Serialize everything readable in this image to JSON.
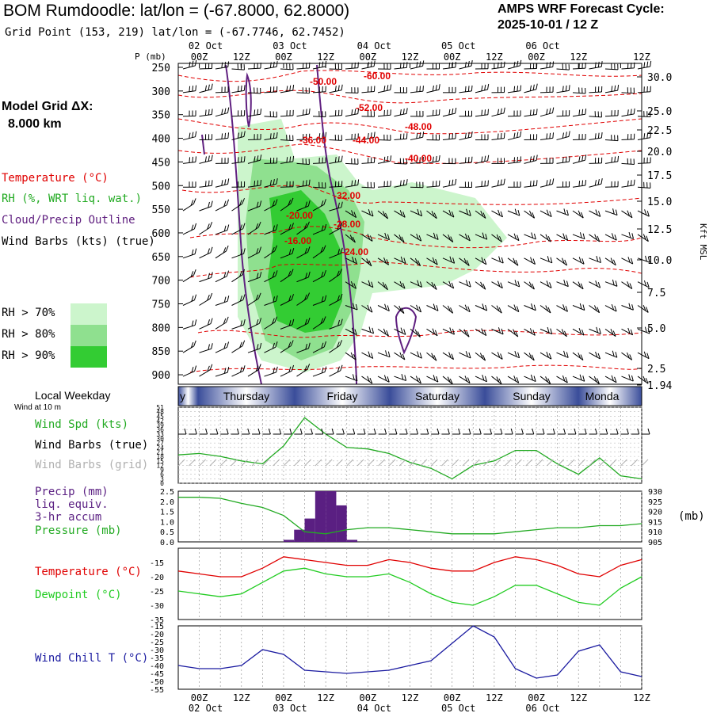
{
  "header": {
    "title": "BOM Rumdoodle:  lat/lon = (-67.8000, 62.8000)",
    "subtitle": "Grid Point (153, 219) lat/lon = (-67.7746, 62.7452)",
    "forecast_line1": "AMPS WRF Forecast Cycle:",
    "forecast_line2": "2025-10-01 / 12  Z",
    "grid_label": "Model Grid ΔX:",
    "grid_value": "8.000 km"
  },
  "colors": {
    "temperature": "#e00000",
    "rh": "#22aa22",
    "cloud": "#602080",
    "wind": "#000000",
    "wind_grid": "#b0b0b0",
    "dewpoint": "#22cc22",
    "precip": "#5a1f82",
    "windchill": "#1a1aa0",
    "day_band": "#3a4d9a"
  },
  "sounding_legend": {
    "temperature": "Temperature (°C)",
    "rh": "RH (%, WRT liq. wat.)",
    "cloud": "Cloud/Precip Outline",
    "wind": "Wind Barbs (kts) (true)",
    "rh70": "RH > 70%",
    "rh80": "RH > 80%",
    "rh90": "RH > 90%"
  },
  "time_axis": {
    "top_dates": [
      "02 Oct",
      "03 Oct",
      "04 Oct",
      "05 Oct",
      "06 Oct"
    ],
    "hour_labels": [
      "00Z",
      "12Z",
      "00Z",
      "12Z",
      "00Z",
      "12Z",
      "00Z",
      "12Z",
      "00Z",
      "12Z"
    ],
    "bottom_dates": [
      "02 Oct",
      "03 Oct",
      "04 Oct",
      "05 Oct",
      "06 Oct"
    ],
    "hour_label_12": "12Z"
  },
  "weekday_band": {
    "label": "Local Weekday",
    "days": [
      "y",
      "Thursday",
      "Friday",
      "Saturday",
      "Sunday",
      "Monda"
    ]
  },
  "chart_data": [
    {
      "type": "heatmap",
      "name": "time-height cross section",
      "ylabel": "P (mb)",
      "pressure_levels": [
        250,
        300,
        350,
        400,
        450,
        500,
        550,
        600,
        650,
        700,
        750,
        800,
        850,
        900
      ],
      "kft_ticks": [
        "30.0",
        "25.0",
        "22.5",
        "20.0",
        "17.5",
        "15.0",
        "12.5",
        "10.0",
        "7.5",
        "5.0",
        "2.5",
        "1.94"
      ],
      "kft_axis_label": "Kft MSL",
      "temperature_contour_labels": [
        "-50.00",
        "-60.00",
        "-52.00",
        "-48.00",
        "-36.00",
        "-44.00",
        "-40.00",
        "-32.00",
        "-20.00",
        "-28.00",
        "-16.00",
        "-24.00"
      ],
      "ylim": [
        250,
        920
      ]
    },
    {
      "type": "line",
      "name": "wind speed 10 m",
      "wind_note": "Wind at 10 m",
      "series_label": "Wind Spd (kts)",
      "barbs_true_label": "Wind Barbs (true)",
      "barbs_grid_label": "Wind Barbs (grid)",
      "ytick_labels": [
        "51",
        "48",
        "45",
        "42",
        "39",
        "36",
        "33",
        "30",
        "27",
        "24",
        "21",
        "18",
        "15",
        "12",
        "9",
        "6",
        "3",
        "0"
      ],
      "ylim": [
        0,
        51
      ],
      "x_hours": [
        0,
        6,
        12,
        18,
        24,
        30,
        36,
        42,
        48,
        54,
        60,
        66,
        72,
        78,
        84,
        90,
        96,
        102,
        108,
        114,
        120,
        126,
        132
      ],
      "values": [
        19,
        20,
        18,
        15,
        13,
        25,
        44,
        33,
        24,
        23,
        20,
        14,
        10,
        3,
        12,
        15,
        22,
        22,
        13,
        6,
        17,
        5,
        3
      ]
    },
    {
      "type": "bar",
      "name": "precip and pressure",
      "precip_label": "Precip (mm)",
      "precip_sub1": "liq. equiv.",
      "precip_sub2": "3-hr accum",
      "pressure_label": "Pressure (mb)",
      "pressure_unit": "(mb)",
      "precip_ticks": [
        "2.5",
        "2.0",
        "1.5",
        "1.0",
        "0.5",
        "0.0"
      ],
      "pressure_ticks": [
        "930",
        "925",
        "920",
        "915",
        "910",
        "905"
      ],
      "precip_x_hours": [
        30,
        33,
        36,
        39,
        42,
        45,
        48
      ],
      "precip_values": [
        0.1,
        0.6,
        1.15,
        2.5,
        2.5,
        1.8,
        0.1
      ],
      "pressure_x_hours": [
        0,
        6,
        12,
        18,
        24,
        30,
        36,
        42,
        48,
        54,
        60,
        66,
        72,
        78,
        84,
        90,
        96,
        102,
        108,
        114,
        120,
        126,
        132
      ],
      "pressure_values": [
        927,
        927,
        926.5,
        924,
        922,
        918,
        910,
        909,
        911,
        912,
        912,
        911,
        910,
        909,
        909,
        909,
        910,
        911,
        912,
        912,
        913,
        913,
        914
      ]
    },
    {
      "type": "line",
      "name": "temperature and dewpoint",
      "temp_label": "Temperature (°C)",
      "dew_label": "Dewpoint (°C)",
      "ytick_labels": [
        "-15",
        "-20",
        "-25",
        "-30",
        "-35"
      ],
      "ylim": [
        -35,
        -10
      ],
      "x_hours": [
        0,
        6,
        12,
        18,
        24,
        30,
        36,
        42,
        48,
        54,
        60,
        66,
        72,
        78,
        84,
        90,
        96,
        102,
        108,
        114,
        120,
        126,
        132
      ],
      "temperature": [
        -18,
        -19,
        -20,
        -20,
        -17,
        -13,
        -14,
        -15,
        -16,
        -16,
        -14,
        -15,
        -17,
        -18,
        -18,
        -15,
        -13,
        -14,
        -16,
        -19,
        -20,
        -16,
        -14
      ],
      "dewpoint": [
        -25,
        -26,
        -27,
        -26,
        -22,
        -18,
        -17,
        -19,
        -20,
        -20,
        -19,
        -22,
        -26,
        -29,
        -30,
        -27,
        -23,
        -23,
        -26,
        -29,
        -30,
        -24,
        -20
      ]
    },
    {
      "type": "line",
      "name": "wind chill",
      "label": "Wind Chill T (°C)",
      "ytick_labels": [
        "-15",
        "-20",
        "-25",
        "-30",
        "-35",
        "-40",
        "-45",
        "-50",
        "-55"
      ],
      "ylim": [
        -55,
        -15
      ],
      "x_hours": [
        0,
        6,
        12,
        18,
        24,
        30,
        36,
        42,
        48,
        54,
        60,
        66,
        72,
        78,
        84,
        90,
        96,
        102,
        108,
        114,
        120,
        126,
        132
      ],
      "values": [
        -40,
        -42,
        -42,
        -40,
        -30,
        -33,
        -43,
        -44,
        -45,
        -44,
        -43,
        -40,
        -37,
        -26,
        -15,
        -22,
        -42,
        -48,
        -46,
        -31,
        -27,
        -44,
        -47
      ]
    }
  ]
}
